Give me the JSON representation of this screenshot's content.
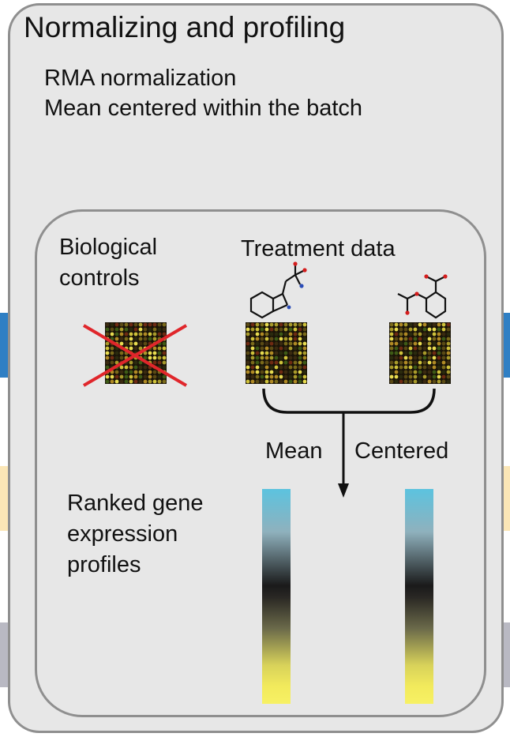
{
  "outer": {
    "title": "Normalizing and profiling",
    "steps": [
      "RMA normalization",
      "Mean centered within the batch"
    ]
  },
  "inner": {
    "biological_controls": [
      "Biological",
      "controls"
    ],
    "treatment_data": "Treatment data",
    "arrow_left_label": "Mean",
    "arrow_right_label": "Centered",
    "ranked_profiles": [
      "Ranked gene",
      "expression",
      "profiles"
    ]
  },
  "colors": {
    "panel_fill": "#e7e7e7",
    "panel_border": "#8f8f8f",
    "side_tab_blue": "#2f7fc4",
    "side_tab_cream": "#fbe6b6",
    "side_tab_gray": "#b9b9c3",
    "cross_red": "#e0262b",
    "gradient_top": "#5cc3df",
    "gradient_mid": "#1a1a1a",
    "gradient_bottom": "#f7f164"
  }
}
